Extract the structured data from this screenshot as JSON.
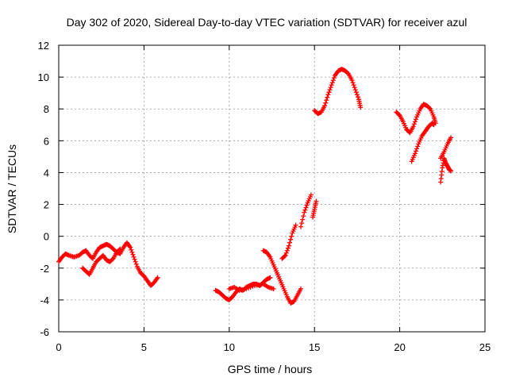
{
  "chart_data": {
    "type": "scatter",
    "title": "Day 302 of 2020, Sidereal Day-to-day VTEC variation (SDTVAR) for receiver azul",
    "xlabel": "GPS time / hours",
    "ylabel": "SDTVAR / TECUs",
    "xlim": [
      0,
      25
    ],
    "ylim": [
      -6,
      12
    ],
    "xticks": [
      0,
      5,
      10,
      15,
      20,
      25
    ],
    "yticks": [
      -6,
      -4,
      -2,
      0,
      2,
      4,
      6,
      8,
      10,
      12
    ],
    "grid": true,
    "marker": "+",
    "color": "#ff0000",
    "series": [
      {
        "name": "SDTVAR",
        "segments": [
          [
            [
              0.0,
              -1.6
            ],
            [
              0.2,
              -1.3
            ],
            [
              0.4,
              -1.1
            ],
            [
              0.6,
              -1.2
            ],
            [
              0.9,
              -1.3
            ],
            [
              1.2,
              -1.2
            ],
            [
              1.4,
              -1.0
            ],
            [
              1.6,
              -0.9
            ],
            [
              1.8,
              -1.2
            ],
            [
              2.0,
              -1.4
            ],
            [
              2.2,
              -1.0
            ],
            [
              2.4,
              -0.7
            ],
            [
              2.6,
              -0.6
            ],
            [
              2.8,
              -0.5
            ],
            [
              3.0,
              -0.6
            ],
            [
              3.2,
              -0.8
            ],
            [
              3.4,
              -1.0
            ],
            [
              3.6,
              -1.1
            ],
            [
              3.8,
              -0.7
            ],
            [
              4.0,
              -0.4
            ],
            [
              4.2,
              -0.7
            ],
            [
              4.4,
              -1.3
            ],
            [
              4.6,
              -1.9
            ],
            [
              4.8,
              -2.3
            ],
            [
              5.0,
              -2.5
            ],
            [
              5.2,
              -2.8
            ],
            [
              5.4,
              -3.1
            ],
            [
              5.6,
              -2.9
            ],
            [
              5.8,
              -2.6
            ]
          ],
          [
            [
              1.4,
              -2.0
            ],
            [
              1.6,
              -2.2
            ],
            [
              1.8,
              -2.4
            ],
            [
              2.0,
              -2.0
            ],
            [
              2.2,
              -1.6
            ],
            [
              2.4,
              -1.4
            ],
            [
              2.6,
              -1.2
            ],
            [
              2.8,
              -1.5
            ],
            [
              3.0,
              -1.6
            ],
            [
              3.2,
              -1.4
            ],
            [
              3.4,
              -1.0
            ],
            [
              3.6,
              -0.8
            ]
          ],
          [
            [
              9.2,
              -3.4
            ],
            [
              9.4,
              -3.5
            ],
            [
              9.6,
              -3.7
            ],
            [
              9.8,
              -3.9
            ],
            [
              10.0,
              -4.0
            ],
            [
              10.2,
              -3.8
            ],
            [
              10.4,
              -3.5
            ],
            [
              10.6,
              -3.3
            ],
            [
              10.8,
              -3.4
            ],
            [
              11.0,
              -3.2
            ],
            [
              11.2,
              -3.1
            ],
            [
              11.4,
              -3.0
            ],
            [
              11.6,
              -3.0
            ],
            [
              11.8,
              -3.1
            ],
            [
              12.0,
              -2.9
            ],
            [
              12.2,
              -2.7
            ],
            [
              12.4,
              -2.6
            ]
          ],
          [
            [
              10.0,
              -3.3
            ],
            [
              10.3,
              -3.2
            ],
            [
              10.6,
              -3.4
            ],
            [
              11.0,
              -3.3
            ],
            [
              11.5,
              -3.1
            ],
            [
              12.0,
              -3.0
            ],
            [
              12.3,
              -3.2
            ],
            [
              12.6,
              -3.3
            ]
          ],
          [
            [
              12.0,
              -0.9
            ],
            [
              12.2,
              -1.0
            ],
            [
              12.4,
              -1.3
            ],
            [
              12.6,
              -1.8
            ],
            [
              12.8,
              -2.3
            ],
            [
              13.0,
              -2.8
            ],
            [
              13.2,
              -3.3
            ],
            [
              13.4,
              -3.8
            ],
            [
              13.6,
              -4.2
            ],
            [
              13.8,
              -4.1
            ],
            [
              14.0,
              -3.7
            ],
            [
              14.2,
              -3.3
            ]
          ],
          [
            [
              13.1,
              -1.4
            ],
            [
              13.3,
              -1.2
            ],
            [
              13.5,
              -0.6
            ],
            [
              13.7,
              0.2
            ],
            [
              13.9,
              0.7
            ]
          ],
          [
            [
              14.2,
              0.6
            ],
            [
              14.4,
              1.5
            ],
            [
              14.6,
              2.1
            ],
            [
              14.8,
              2.6
            ]
          ],
          [
            [
              14.9,
              1.2
            ],
            [
              15.0,
              1.7
            ],
            [
              15.1,
              2.2
            ]
          ],
          [
            [
              15.0,
              7.9
            ],
            [
              15.2,
              7.7
            ],
            [
              15.4,
              7.8
            ],
            [
              15.6,
              8.2
            ],
            [
              15.8,
              8.9
            ],
            [
              16.0,
              9.5
            ],
            [
              16.2,
              10.1
            ],
            [
              16.4,
              10.4
            ],
            [
              16.6,
              10.5
            ],
            [
              16.8,
              10.4
            ],
            [
              17.0,
              10.2
            ],
            [
              17.2,
              9.8
            ],
            [
              17.4,
              9.2
            ],
            [
              17.6,
              8.6
            ],
            [
              17.7,
              8.1
            ]
          ],
          [
            [
              19.8,
              7.8
            ],
            [
              20.0,
              7.6
            ],
            [
              20.2,
              7.2
            ],
            [
              20.4,
              6.7
            ],
            [
              20.6,
              6.5
            ],
            [
              20.8,
              6.9
            ],
            [
              21.0,
              7.5
            ],
            [
              21.2,
              8.0
            ],
            [
              21.4,
              8.3
            ],
            [
              21.6,
              8.2
            ],
            [
              21.8,
              8.0
            ],
            [
              22.0,
              7.5
            ],
            [
              22.1,
              7.1
            ]
          ],
          [
            [
              20.7,
              4.7
            ],
            [
              20.9,
              5.2
            ],
            [
              21.1,
              5.8
            ],
            [
              21.3,
              6.3
            ],
            [
              21.5,
              6.6
            ],
            [
              21.7,
              6.9
            ],
            [
              21.9,
              7.1
            ],
            [
              22.0,
              7.0
            ]
          ],
          [
            [
              22.4,
              3.4
            ],
            [
              22.5,
              4.3
            ],
            [
              22.6,
              4.9
            ],
            [
              22.7,
              4.6
            ],
            [
              22.8,
              4.4
            ],
            [
              22.9,
              4.2
            ],
            [
              23.0,
              4.1
            ]
          ],
          [
            [
              22.4,
              4.9
            ],
            [
              22.6,
              5.3
            ],
            [
              22.8,
              5.8
            ],
            [
              23.0,
              6.2
            ]
          ]
        ]
      }
    ]
  }
}
